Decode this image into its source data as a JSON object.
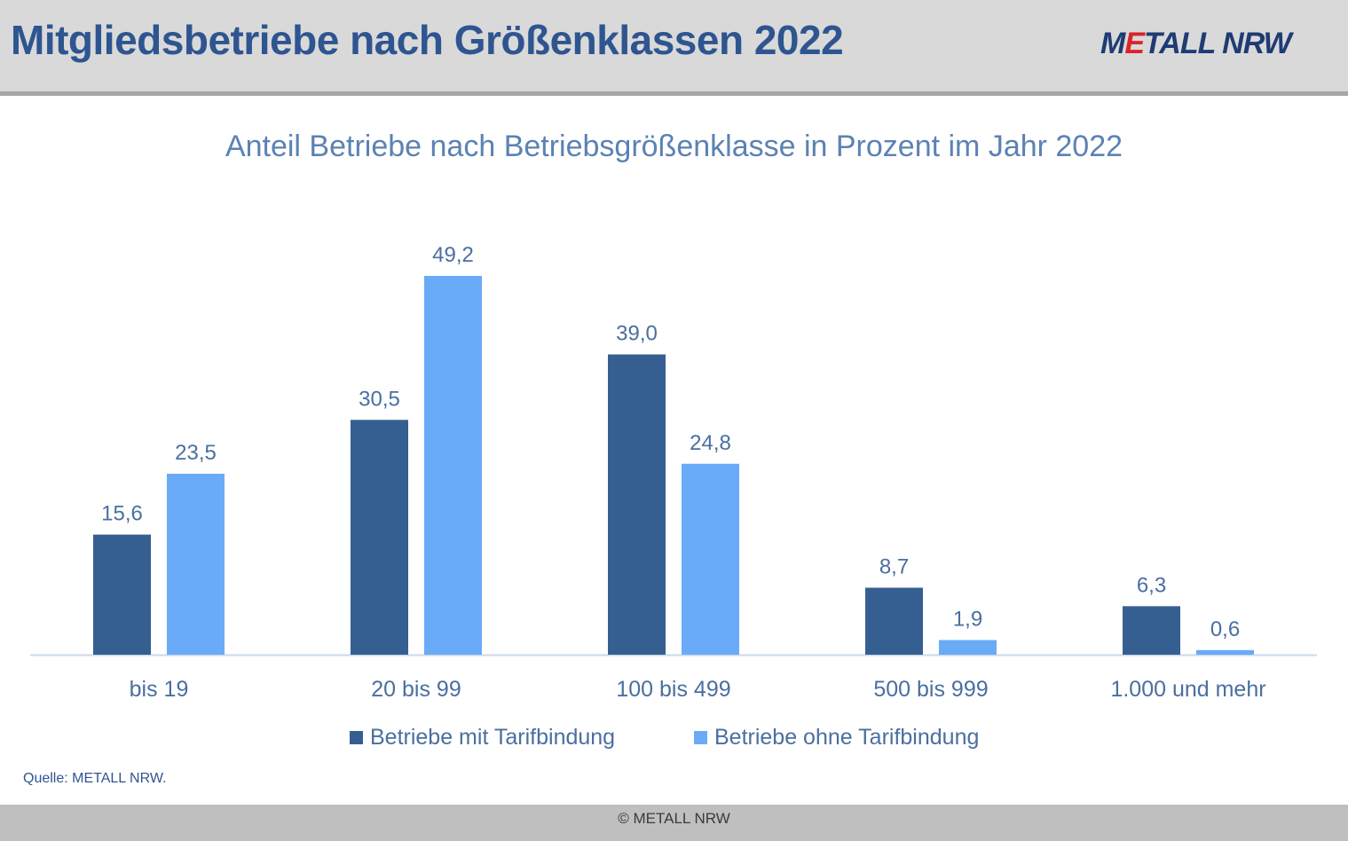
{
  "header": {
    "title": "Mitgliedsbetriebe nach Größenklassen 2022",
    "logo_text": "METALL NRW"
  },
  "source_note": "Quelle: METALL NRW.",
  "footer": {
    "copyright": "© METALL NRW"
  },
  "colors": {
    "series_with": "#365f91",
    "series_without": "#6aabf7",
    "label": "#4a6fa0",
    "axis": "#c9d9ea"
  },
  "chart_data": {
    "type": "bar",
    "title": "Anteil Betriebe nach Betriebsgrößenklasse in Prozent im Jahr 2022",
    "categories": [
      "bis 19",
      "20 bis 99",
      "100 bis 499",
      "500 bis 999",
      "1.000 und mehr"
    ],
    "series": [
      {
        "name": "Betriebe mit Tarifbindung",
        "values": [
          15.6,
          30.5,
          39.0,
          8.7,
          6.3
        ],
        "labels": [
          "15,6",
          "30,5",
          "39,0",
          "8,7",
          "6,3"
        ]
      },
      {
        "name": "Betriebe ohne Tarifbindung",
        "values": [
          23.5,
          49.2,
          24.8,
          1.9,
          0.6
        ],
        "labels": [
          "23,5",
          "49,2",
          "24,8",
          "1,9",
          "0,6"
        ]
      }
    ],
    "ylim": [
      0,
      50
    ],
    "grid": false,
    "legend_position": "bottom"
  }
}
